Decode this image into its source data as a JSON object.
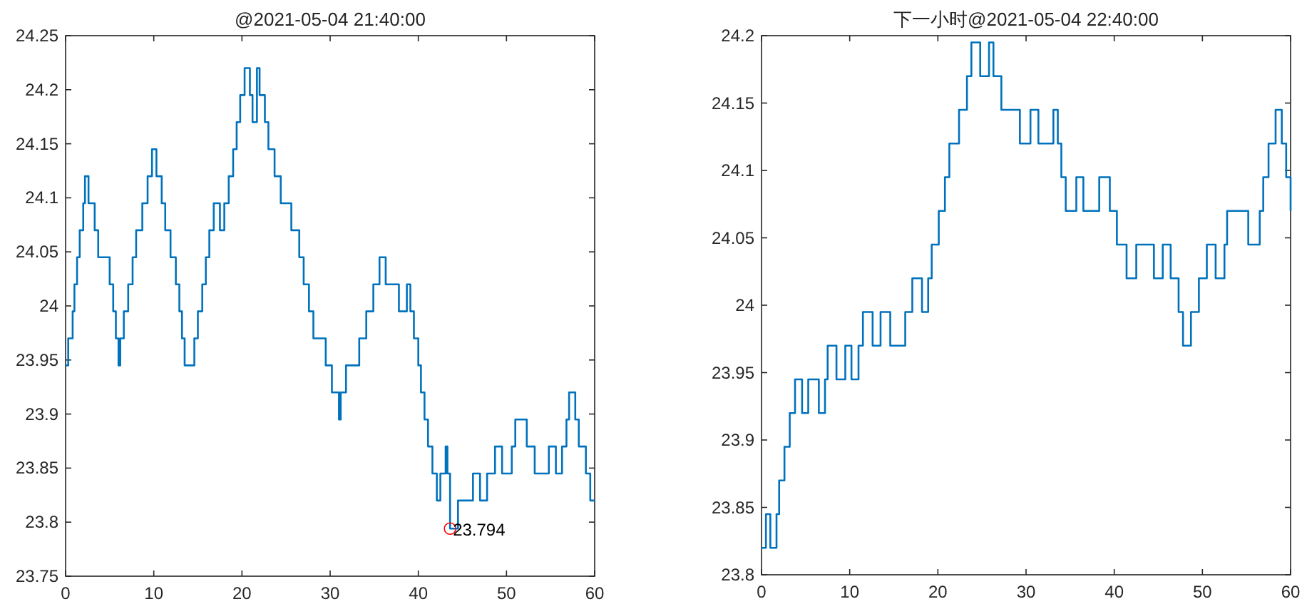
{
  "chart_data": [
    {
      "type": "step",
      "title": "@2021-05-04 21:40:00",
      "xlim": [
        0,
        60
      ],
      "ylim": [
        23.75,
        24.25
      ],
      "xticks": [
        0,
        10,
        20,
        30,
        40,
        50,
        60
      ],
      "yticks": [
        23.75,
        23.8,
        23.85,
        23.9,
        23.95,
        24,
        24.05,
        24.1,
        24.15,
        24.2,
        24.25
      ],
      "series": [
        {
          "color": "#0072bd",
          "x": [
            0,
            0.3,
            0.8,
            1.0,
            1.3,
            1.6,
            2.0,
            2.2,
            2.6,
            3.3,
            3.7,
            4.5,
            5,
            5.4,
            5.7,
            6.0,
            6.2,
            6.6,
            7.1,
            7.6,
            8,
            8.7,
            9.3,
            9.8,
            10.3,
            10.9,
            11.3,
            11.9,
            12.5,
            12.9,
            13.2,
            13.5,
            14.6,
            15,
            15.5,
            15.9,
            16.3,
            16.8,
            17.5,
            18,
            18.5,
            19,
            19.4,
            19.8,
            20.3,
            20.9,
            21.2,
            21.7,
            22,
            22.6,
            23,
            23.7,
            24.4,
            25.6,
            26.5,
            27,
            27.6,
            28.1,
            29.5,
            30.2,
            31,
            31.2,
            31.8,
            33.3,
            34.1,
            34.9,
            35.6,
            36.3,
            37.8,
            38.7,
            39.1,
            39.5,
            40,
            40.3,
            40.7,
            41.1,
            41.6,
            42.1,
            42.5,
            43.1,
            43.3,
            43.6,
            44.5,
            45.5,
            46.2,
            47,
            47.8,
            48.7,
            49.5,
            50.6,
            51,
            52.3,
            53.2,
            54.8,
            55.6,
            56.3,
            56.8,
            57.1,
            57.8,
            58.2,
            59,
            59.5,
            60
          ],
          "values": [
            23.945,
            23.97,
            23.995,
            24.02,
            24.045,
            24.07,
            24.095,
            24.12,
            24.095,
            24.07,
            24.045,
            24.045,
            24.02,
            23.995,
            23.97,
            23.945,
            23.97,
            23.995,
            24.02,
            24.045,
            24.07,
            24.095,
            24.12,
            24.145,
            24.12,
            24.095,
            24.07,
            24.045,
            24.02,
            23.995,
            23.97,
            23.945,
            23.97,
            23.995,
            24.02,
            24.045,
            24.07,
            24.095,
            24.07,
            24.095,
            24.12,
            24.145,
            24.17,
            24.195,
            24.22,
            24.195,
            24.17,
            24.22,
            24.195,
            24.17,
            24.145,
            24.12,
            24.095,
            24.07,
            24.045,
            24.02,
            23.995,
            23.97,
            23.945,
            23.92,
            23.895,
            23.92,
            23.945,
            23.97,
            23.995,
            24.02,
            24.045,
            24.02,
            23.995,
            24.02,
            23.995,
            23.97,
            23.945,
            23.92,
            23.895,
            23.87,
            23.845,
            23.82,
            23.845,
            23.87,
            23.845,
            23.794,
            23.82,
            23.82,
            23.845,
            23.82,
            23.845,
            23.87,
            23.845,
            23.87,
            23.895,
            23.87,
            23.845,
            23.87,
            23.845,
            23.87,
            23.895,
            23.92,
            23.895,
            23.87,
            23.845,
            23.82,
            23.82
          ]
        }
      ],
      "annotations": [
        {
          "text": "23.794",
          "x": 43.6,
          "y": 23.794
        }
      ]
    },
    {
      "type": "step",
      "title": "下一小时@2021-05-04 22:40:00",
      "xlim": [
        0,
        60
      ],
      "ylim": [
        23.8,
        24.2
      ],
      "xticks": [
        0,
        10,
        20,
        30,
        40,
        50,
        60
      ],
      "yticks": [
        23.8,
        23.85,
        23.9,
        23.95,
        24,
        24.05,
        24.1,
        24.15,
        24.2
      ],
      "series": [
        {
          "color": "#0072bd",
          "x": [
            0,
            0.5,
            1.0,
            1.7,
            2.0,
            2.6,
            3.2,
            3.8,
            4.6,
            5.3,
            6.5,
            7.2,
            7.5,
            8.5,
            9.5,
            10.2,
            11,
            11.5,
            12.6,
            13.5,
            14.6,
            16.3,
            17.1,
            18.2,
            18.9,
            19.3,
            20.1,
            20.8,
            21.3,
            22.4,
            23.3,
            23.8,
            24.8,
            25.8,
            26.3,
            27.2,
            29.3,
            30.5,
            31.4,
            33.1,
            33.6,
            34,
            34.5,
            35.7,
            36.5,
            38.3,
            39.5,
            40.3,
            41.4,
            42.5,
            44.5,
            45.5,
            46.4,
            47.3,
            47.8,
            48.7,
            49.6,
            50.5,
            51.5,
            52.5,
            52.8,
            55.2,
            56.5,
            56.9,
            57.5,
            58.3,
            59,
            59.5,
            60
          ],
          "values": [
            23.82,
            23.845,
            23.82,
            23.845,
            23.87,
            23.895,
            23.92,
            23.945,
            23.92,
            23.945,
            23.92,
            23.945,
            23.97,
            23.945,
            23.97,
            23.945,
            23.97,
            23.995,
            23.97,
            23.995,
            23.97,
            23.995,
            24.02,
            23.995,
            24.02,
            24.045,
            24.07,
            24.095,
            24.12,
            24.145,
            24.17,
            24.195,
            24.17,
            24.195,
            24.17,
            24.145,
            24.12,
            24.145,
            24.12,
            24.145,
            24.12,
            24.095,
            24.07,
            24.095,
            24.07,
            24.095,
            24.07,
            24.045,
            24.02,
            24.045,
            24.02,
            24.045,
            24.02,
            23.995,
            23.97,
            23.995,
            24.02,
            24.045,
            24.02,
            24.045,
            24.07,
            24.045,
            24.07,
            24.095,
            24.12,
            24.145,
            24.12,
            24.095,
            24.07
          ]
        }
      ]
    }
  ]
}
